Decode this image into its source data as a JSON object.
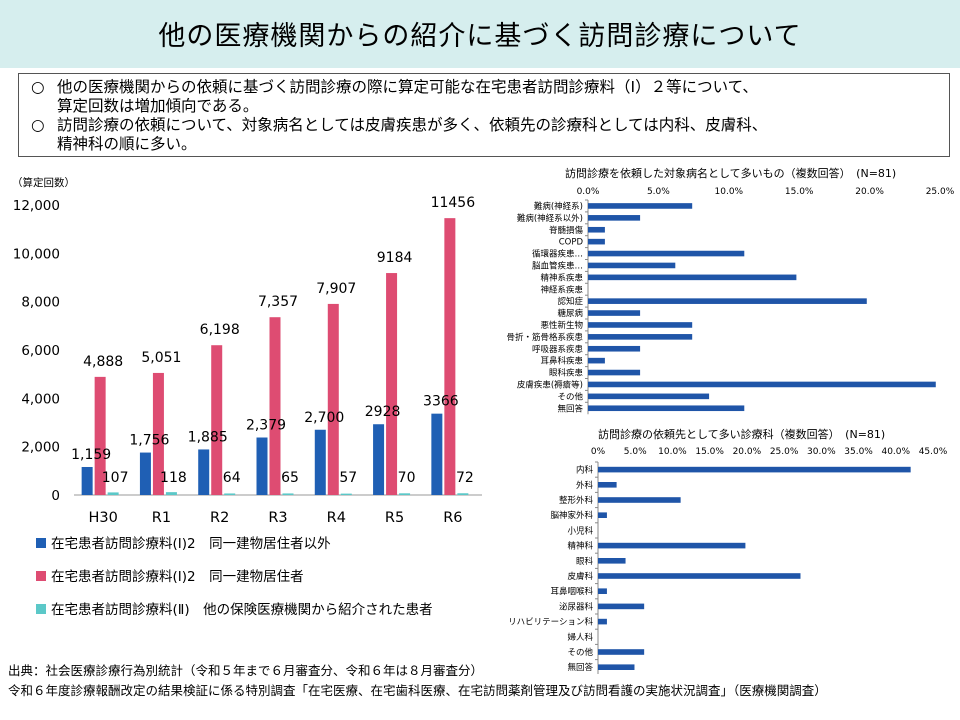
{
  "title": "他の医療機関からの紹介に基づく訪問診療について",
  "summary": [
    {
      "bullet": "○",
      "lines": [
        "他の医療機関からの依頼に基づく訪問診療の際に算定可能な在宅患者訪問診療料（Ⅰ）２等について、",
        "算定回数は増加傾向である。"
      ]
    },
    {
      "bullet": "○",
      "lines": [
        "訪問診療の依頼について、対象病名としては皮膚疾患が多く、依頼先の診療科としては内科、皮膚科、",
        "精神科の順に多い。"
      ]
    }
  ],
  "colors": {
    "series1": "#1f5fb4",
    "series2": "#de4c72",
    "series3": "#5bc8c8",
    "hbar": "#1f55a8",
    "title_bg": "#d6eeee"
  },
  "chart_data": [
    {
      "type": "bar",
      "ylabel": "（算定回数）",
      "ylim": [
        0,
        12000
      ],
      "yticks": [
        "0",
        "2,000",
        "4,000",
        "6,000",
        "8,000",
        "10,000",
        "12,000"
      ],
      "categories": [
        "H30",
        "R1",
        "R2",
        "R3",
        "R4",
        "R5",
        "R6"
      ],
      "series": [
        {
          "name": "在宅患者訪問診療料(Ⅰ)2　同一建物居住者以外",
          "values": [
            1159,
            1756,
            1885,
            2379,
            2700,
            2928,
            3366
          ],
          "labels": [
            "1,159",
            "1,756",
            "1,885",
            "2,379",
            "2,700",
            "2928",
            "3366"
          ]
        },
        {
          "name": "在宅患者訪問診療料(Ⅰ)2　同一建物居住者",
          "values": [
            4888,
            5051,
            6198,
            7357,
            7907,
            9184,
            11456
          ],
          "labels": [
            "4,888",
            "5,051",
            "6,198",
            "7,357",
            "7,907",
            "9184",
            "11456"
          ]
        },
        {
          "name": "在宅患者訪問診療料(Ⅱ)　他の保険医療機関から紹介された患者",
          "values": [
            107,
            118,
            64,
            65,
            57,
            70,
            72
          ],
          "labels": [
            "107",
            "118",
            "64",
            "65",
            "57",
            "70",
            "72"
          ]
        }
      ],
      "legend": "bottom",
      "grid": false
    },
    {
      "type": "bar",
      "orientation": "horizontal",
      "title": "訪問診療を依頼した対象病名として多いもの（複数回答）　(N=81)",
      "xlim": [
        0,
        25
      ],
      "xticks": [
        "0.0%",
        "5.0%",
        "10.0%",
        "15.0%",
        "20.0%",
        "25.0%"
      ],
      "categories": [
        "難病(神経系)",
        "難病(神経系以外)",
        "脊髄損傷",
        "COPD",
        "循環器疾患…",
        "脳血管疾患…",
        "精神系疾患",
        "神経系疾患",
        "認知症",
        "糖尿病",
        "悪性新生物",
        "骨折・筋骨格系疾患",
        "呼吸器系疾患",
        "耳鼻科疾患",
        "眼科疾患",
        "皮膚疾患(褥瘡等)",
        "その他",
        "無回答"
      ],
      "values": [
        7.4,
        3.7,
        1.2,
        1.2,
        11.1,
        6.2,
        14.8,
        0.0,
        19.8,
        3.7,
        7.4,
        7.4,
        3.7,
        1.2,
        3.7,
        24.7,
        8.6,
        11.1
      ],
      "grid": false
    },
    {
      "type": "bar",
      "orientation": "horizontal",
      "title": "訪問診療の依頼先として多い診療科（複数回答）　(N=81)",
      "xlim": [
        0,
        45
      ],
      "xticks": [
        "0%",
        "5.0%",
        "10.0%",
        "15.0%",
        "20.0%",
        "25.0%",
        "30.0%",
        "35.0%",
        "40.0%",
        "45.0%"
      ],
      "categories": [
        "内科",
        "外科",
        "整形外科",
        "脳神家外科",
        "小児科",
        "精神科",
        "眼科",
        "皮膚科",
        "耳鼻咽喉科",
        "泌尿器科",
        "リハビリテーション科",
        "婦人科",
        "その他",
        "無回答"
      ],
      "values": [
        42.0,
        2.5,
        11.1,
        1.2,
        0.0,
        19.8,
        3.7,
        27.2,
        1.2,
        6.2,
        1.2,
        0.0,
        6.2,
        4.9
      ],
      "grid": false
    }
  ],
  "footnotes": [
    "出典：社会医療診療行為別統計（令和５年まで６月審査分、令和６年は８月審査分）",
    "令和６年度診療報酬改定の結果検証に係る特別調査「在宅医療、在宅歯科医療、在宅訪問薬剤管理及び訪問看護の実施状況調査」（医療機関調査）"
  ]
}
